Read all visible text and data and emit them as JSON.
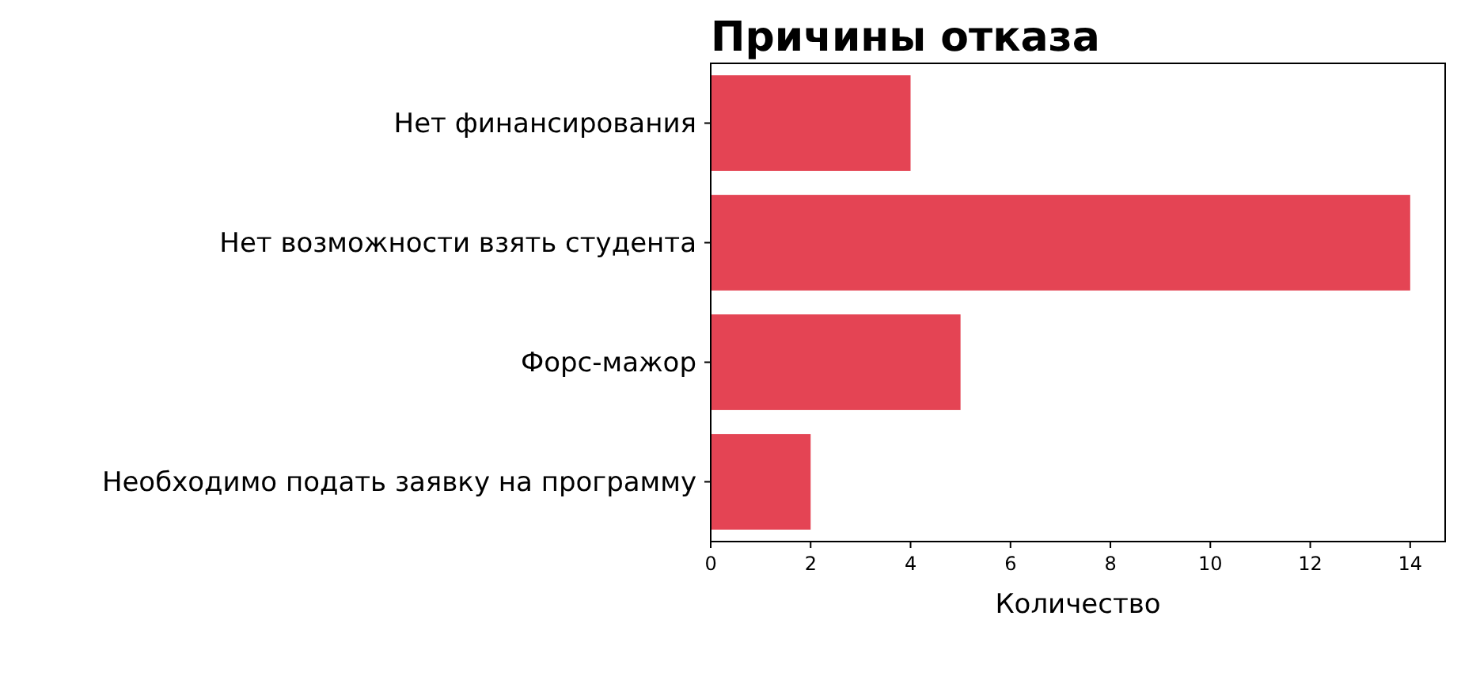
{
  "chart_data": {
    "type": "bar",
    "orientation": "horizontal",
    "title": "Причины отказа",
    "xlabel": "Количество",
    "categories": [
      "Нет финансирования",
      "Нет возможности взять студента",
      "Форс-мажор",
      "Необходимо подать заявку на программу"
    ],
    "values": [
      4,
      14,
      5,
      2
    ],
    "color": "#e44454",
    "xlim": [
      0,
      14.7
    ],
    "xticks": [
      0,
      2,
      4,
      6,
      8,
      10,
      12,
      14
    ],
    "grid": false
  }
}
